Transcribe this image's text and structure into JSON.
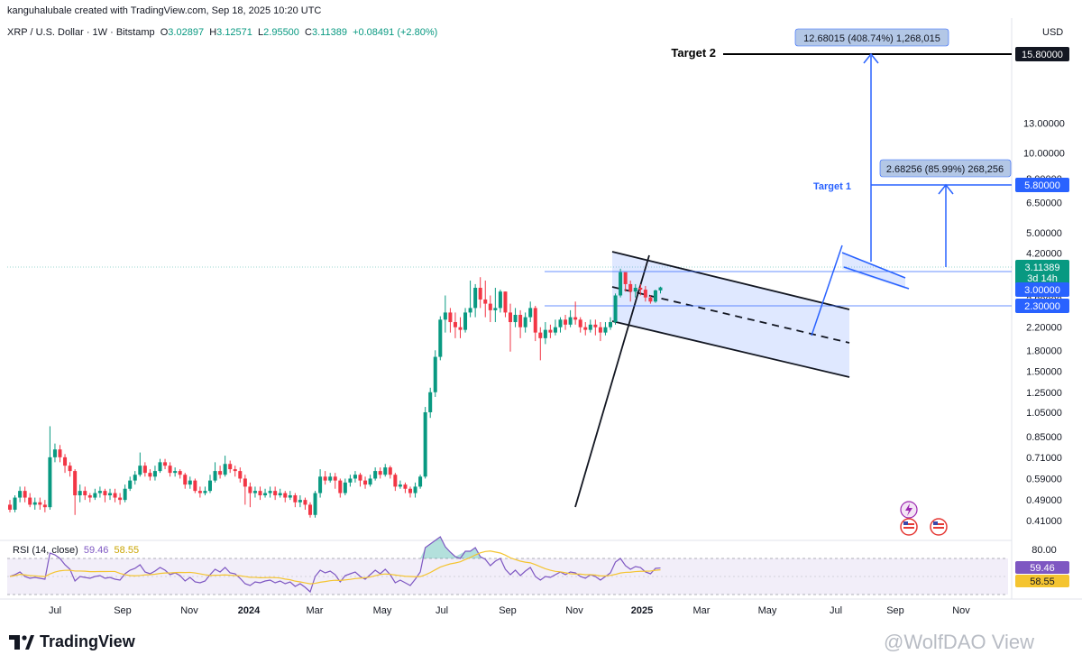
{
  "header": {
    "attribution": "kanguhalubale created with TradingView.com, Sep 18, 2025 10:20 UTC"
  },
  "symbol_line": {
    "name": "XRP / U.S. Dollar · 1W · Bitstamp",
    "o_label": "O",
    "o": "3.02897",
    "h_label": "H",
    "h": "3.12571",
    "l_label": "L",
    "l": "2.95500",
    "c_label": "C",
    "c": "3.11389",
    "change": "+0.08491 (+2.80%)"
  },
  "currency": "USD",
  "rsi": {
    "label": "RSI (14, close)",
    "value": "59.46",
    "ma_value": "58.55",
    "axis_top": "80.00"
  },
  "logo": {
    "text": "TradingView"
  },
  "watermark": "@WolfDAO View",
  "colors": {
    "up": "#089981",
    "down": "#f23645",
    "accent": "#2962ff",
    "rsi": "#7e57c2",
    "rsi_ma": "#f4c430"
  },
  "chart_data": {
    "type": "candlestick",
    "scale": "log",
    "y_ticks": [
      "13.00000",
      "10.00000",
      "8.00000",
      "6.50000",
      "5.00000",
      "4.20000",
      "3.40000",
      "2.80000",
      "2.20000",
      "1.80000",
      "1.50000",
      "1.25000",
      "1.05000",
      "0.85000",
      "0.71000",
      "0.59000",
      "0.49000",
      "0.41000"
    ],
    "x_ticks": [
      "Jul",
      "Sep",
      "Nov",
      "2024",
      "Mar",
      "May",
      "Jul",
      "Sep",
      "Nov",
      "2025",
      "Mar",
      "May",
      "Jul",
      "Sep",
      "Nov"
    ],
    "price_tags": {
      "target2": "15.80000",
      "target1": "5.80000",
      "last": "3.11389",
      "countdown": "3d 14h",
      "level_3": "3.00000",
      "level_23": "2.30000"
    },
    "annotations": {
      "target2_label": "Target 2",
      "target1_label": "Target 1",
      "measure_big": "12.68015 (408.74%) 1,268,015",
      "measure_small": "2.68256 (85.99%) 268,256"
    },
    "candles": [
      [
        0.47,
        0.45,
        0.49,
        0.44
      ],
      [
        0.45,
        0.5,
        0.51,
        0.44
      ],
      [
        0.5,
        0.53,
        0.55,
        0.48
      ],
      [
        0.53,
        0.5,
        0.55,
        0.48
      ],
      [
        0.5,
        0.47,
        0.52,
        0.46
      ],
      [
        0.47,
        0.48,
        0.5,
        0.45
      ],
      [
        0.48,
        0.47,
        0.5,
        0.45
      ],
      [
        0.47,
        0.46,
        0.49,
        0.44
      ],
      [
        0.46,
        0.71,
        0.93,
        0.45
      ],
      [
        0.71,
        0.76,
        0.8,
        0.68
      ],
      [
        0.76,
        0.71,
        0.79,
        0.68
      ],
      [
        0.71,
        0.66,
        0.73,
        0.62
      ],
      [
        0.66,
        0.63,
        0.68,
        0.6
      ],
      [
        0.63,
        0.51,
        0.64,
        0.43
      ],
      [
        0.51,
        0.53,
        0.56,
        0.48
      ],
      [
        0.53,
        0.51,
        0.55,
        0.49
      ],
      [
        0.51,
        0.5,
        0.52,
        0.48
      ],
      [
        0.5,
        0.52,
        0.54,
        0.49
      ],
      [
        0.52,
        0.53,
        0.55,
        0.5
      ],
      [
        0.53,
        0.51,
        0.54,
        0.48
      ],
      [
        0.51,
        0.52,
        0.54,
        0.49
      ],
      [
        0.52,
        0.5,
        0.54,
        0.48
      ],
      [
        0.5,
        0.49,
        0.52,
        0.47
      ],
      [
        0.49,
        0.54,
        0.56,
        0.48
      ],
      [
        0.54,
        0.58,
        0.6,
        0.53
      ],
      [
        0.58,
        0.61,
        0.63,
        0.56
      ],
      [
        0.61,
        0.66,
        0.74,
        0.6
      ],
      [
        0.66,
        0.62,
        0.68,
        0.6
      ],
      [
        0.62,
        0.6,
        0.64,
        0.58
      ],
      [
        0.6,
        0.63,
        0.66,
        0.58
      ],
      [
        0.63,
        0.68,
        0.7,
        0.62
      ],
      [
        0.68,
        0.66,
        0.7,
        0.64
      ],
      [
        0.66,
        0.62,
        0.68,
        0.6
      ],
      [
        0.62,
        0.63,
        0.65,
        0.6
      ],
      [
        0.63,
        0.61,
        0.64,
        0.59
      ],
      [
        0.61,
        0.56,
        0.62,
        0.54
      ],
      [
        0.56,
        0.58,
        0.6,
        0.54
      ],
      [
        0.58,
        0.53,
        0.59,
        0.52
      ],
      [
        0.53,
        0.52,
        0.55,
        0.5
      ],
      [
        0.52,
        0.53,
        0.55,
        0.51
      ],
      [
        0.53,
        0.58,
        0.61,
        0.52
      ],
      [
        0.58,
        0.63,
        0.68,
        0.57
      ],
      [
        0.63,
        0.61,
        0.66,
        0.59
      ],
      [
        0.61,
        0.67,
        0.72,
        0.6
      ],
      [
        0.67,
        0.64,
        0.69,
        0.62
      ],
      [
        0.64,
        0.63,
        0.66,
        0.6
      ],
      [
        0.63,
        0.59,
        0.65,
        0.57
      ],
      [
        0.59,
        0.55,
        0.61,
        0.47
      ],
      [
        0.55,
        0.52,
        0.57,
        0.46
      ],
      [
        0.52,
        0.53,
        0.55,
        0.5
      ],
      [
        0.53,
        0.51,
        0.55,
        0.49
      ],
      [
        0.51,
        0.52,
        0.54,
        0.5
      ],
      [
        0.52,
        0.53,
        0.55,
        0.5
      ],
      [
        0.53,
        0.51,
        0.55,
        0.49
      ],
      [
        0.51,
        0.52,
        0.54,
        0.5
      ],
      [
        0.52,
        0.5,
        0.53,
        0.48
      ],
      [
        0.5,
        0.51,
        0.53,
        0.49
      ],
      [
        0.51,
        0.48,
        0.52,
        0.46
      ],
      [
        0.48,
        0.49,
        0.51,
        0.46
      ],
      [
        0.49,
        0.47,
        0.5,
        0.45
      ],
      [
        0.47,
        0.43,
        0.48,
        0.42
      ],
      [
        0.43,
        0.52,
        0.53,
        0.42
      ],
      [
        0.52,
        0.6,
        0.64,
        0.5
      ],
      [
        0.6,
        0.58,
        0.63,
        0.56
      ],
      [
        0.58,
        0.6,
        0.62,
        0.57
      ],
      [
        0.6,
        0.58,
        0.62,
        0.54
      ],
      [
        0.58,
        0.52,
        0.59,
        0.5
      ],
      [
        0.52,
        0.57,
        0.59,
        0.51
      ],
      [
        0.57,
        0.59,
        0.61,
        0.55
      ],
      [
        0.59,
        0.61,
        0.63,
        0.57
      ],
      [
        0.61,
        0.58,
        0.62,
        0.55
      ],
      [
        0.58,
        0.56,
        0.6,
        0.54
      ],
      [
        0.56,
        0.59,
        0.61,
        0.55
      ],
      [
        0.59,
        0.63,
        0.65,
        0.58
      ],
      [
        0.63,
        0.61,
        0.65,
        0.59
      ],
      [
        0.61,
        0.65,
        0.67,
        0.6
      ],
      [
        0.65,
        0.61,
        0.66,
        0.59
      ],
      [
        0.61,
        0.55,
        0.62,
        0.53
      ],
      [
        0.55,
        0.56,
        0.58,
        0.54
      ],
      [
        0.56,
        0.54,
        0.57,
        0.52
      ],
      [
        0.54,
        0.52,
        0.55,
        0.5
      ],
      [
        0.52,
        0.55,
        0.57,
        0.5
      ],
      [
        0.55,
        0.6,
        0.61,
        0.54
      ],
      [
        0.6,
        1.05,
        1.1,
        0.59
      ],
      [
        1.05,
        1.25,
        1.3,
        1.0
      ],
      [
        1.25,
        1.7,
        1.8,
        1.2
      ],
      [
        1.7,
        2.35,
        2.42,
        1.65
      ],
      [
        2.35,
        2.5,
        2.9,
        2.1
      ],
      [
        2.5,
        2.3,
        2.6,
        2.1
      ],
      [
        2.3,
        2.2,
        2.5,
        2.0
      ],
      [
        2.2,
        2.15,
        2.4,
        2.0
      ],
      [
        2.15,
        2.5,
        2.6,
        2.1
      ],
      [
        2.5,
        2.6,
        3.3,
        2.4
      ],
      [
        2.6,
        3.1,
        3.2,
        2.4
      ],
      [
        3.1,
        2.8,
        3.4,
        2.6
      ],
      [
        2.8,
        2.7,
        3.3,
        2.4
      ],
      [
        2.7,
        2.55,
        2.9,
        2.3
      ],
      [
        2.55,
        2.6,
        3.1,
        2.3
      ],
      [
        2.6,
        3.0,
        3.05,
        2.5
      ],
      [
        3.0,
        2.5,
        3.0,
        2.4
      ],
      [
        2.5,
        2.3,
        2.7,
        1.78
      ],
      [
        2.3,
        2.45,
        2.6,
        2.2
      ],
      [
        2.45,
        2.2,
        2.55,
        2.0
      ],
      [
        2.2,
        2.4,
        2.5,
        2.1
      ],
      [
        2.4,
        2.6,
        2.75,
        2.3
      ],
      [
        2.6,
        2.1,
        2.65,
        1.95
      ],
      [
        2.1,
        2.0,
        2.2,
        1.65
      ],
      [
        2.0,
        2.15,
        2.3,
        1.9
      ],
      [
        2.15,
        2.1,
        2.25,
        2.0
      ],
      [
        2.1,
        2.2,
        2.35,
        2.05
      ],
      [
        2.2,
        2.35,
        2.4,
        2.1
      ],
      [
        2.35,
        2.25,
        2.45,
        2.15
      ],
      [
        2.25,
        2.4,
        2.55,
        2.2
      ],
      [
        2.4,
        2.35,
        2.75,
        2.25
      ],
      [
        2.35,
        2.2,
        2.4,
        2.1
      ],
      [
        2.2,
        2.15,
        2.3,
        2.05
      ],
      [
        2.15,
        2.25,
        2.35,
        2.1
      ],
      [
        2.25,
        2.2,
        2.35,
        2.05
      ],
      [
        2.2,
        2.1,
        2.3,
        1.95
      ],
      [
        2.1,
        2.2,
        2.3,
        2.05
      ],
      [
        2.2,
        2.3,
        2.4,
        2.15
      ],
      [
        2.3,
        2.9,
        2.95,
        2.25
      ],
      [
        2.9,
        3.55,
        3.66,
        2.85
      ],
      [
        3.55,
        3.2,
        3.4,
        3.0
      ],
      [
        3.2,
        3.0,
        3.3,
        2.75
      ],
      [
        3.0,
        3.1,
        3.2,
        2.85
      ],
      [
        3.1,
        3.05,
        3.2,
        2.9
      ],
      [
        3.05,
        2.85,
        3.15,
        2.75
      ],
      [
        2.85,
        2.75,
        2.9,
        2.7
      ],
      [
        2.75,
        3.03,
        3.05,
        2.72
      ],
      [
        3.03,
        3.11,
        3.13,
        2.95
      ]
    ],
    "rsi_values": [
      50,
      52,
      55,
      50,
      48,
      49,
      48,
      47,
      76,
      74,
      70,
      63,
      58,
      45,
      50,
      49,
      48,
      50,
      51,
      48,
      49,
      47,
      46,
      53,
      57,
      59,
      63,
      55,
      53,
      56,
      60,
      57,
      52,
      54,
      51,
      45,
      49,
      44,
      43,
      45,
      52,
      58,
      55,
      60,
      54,
      53,
      48,
      42,
      40,
      44,
      43,
      45,
      46,
      43,
      45,
      42,
      44,
      39,
      42,
      38,
      33,
      50,
      57,
      54,
      56,
      52,
      44,
      51,
      53,
      55,
      50,
      47,
      52,
      57,
      53,
      58,
      52,
      43,
      46,
      43,
      40,
      47,
      55,
      82,
      86,
      90,
      94,
      83,
      77,
      72,
      70,
      78,
      78,
      82,
      72,
      69,
      62,
      67,
      70,
      58,
      52,
      57,
      51,
      56,
      60,
      50,
      46,
      50,
      49,
      52,
      55,
      52,
      55,
      54,
      50,
      48,
      52,
      50,
      46,
      50,
      54,
      66,
      70,
      62,
      58,
      61,
      60,
      55,
      53,
      59,
      59.46
    ],
    "rsi_range": [
      20,
      90
    ]
  }
}
